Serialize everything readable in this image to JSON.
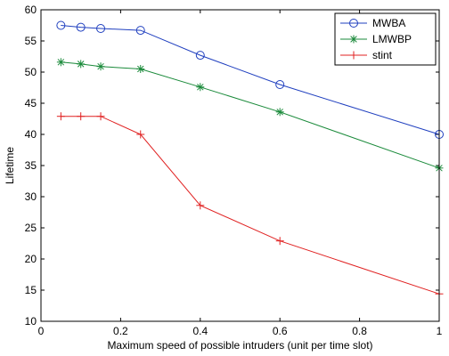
{
  "chart_data": {
    "type": "line",
    "xlabel": "Maximum speed of possible intruders (unit per time slot)",
    "ylabel": "Lifetime",
    "xlim": [
      0,
      1
    ],
    "ylim": [
      10,
      60
    ],
    "x_ticks": [
      0,
      0.2,
      0.4,
      0.6,
      0.8,
      1
    ],
    "x_tick_labels": [
      "0",
      "0.2",
      "0.4",
      "0.6",
      "0.8",
      "1"
    ],
    "y_ticks": [
      10,
      15,
      20,
      25,
      30,
      35,
      40,
      45,
      50,
      55,
      60
    ],
    "y_tick_labels": [
      "10",
      "15",
      "20",
      "25",
      "30",
      "35",
      "40",
      "45",
      "50",
      "55",
      "60"
    ],
    "grid": false,
    "legend_position": "top-right",
    "x": [
      0.05,
      0.1,
      0.15,
      0.25,
      0.4,
      0.6,
      1.0
    ],
    "series": [
      {
        "name": "MWBA",
        "color": "#1f3fbf",
        "marker": "circle",
        "values": [
          57.5,
          57.2,
          57.0,
          56.7,
          52.7,
          48.0,
          40.0
        ]
      },
      {
        "name": "LMWBP",
        "color": "#1a8a3a",
        "marker": "asterisk",
        "values": [
          51.6,
          51.3,
          50.9,
          50.5,
          47.6,
          43.6,
          34.6
        ]
      },
      {
        "name": "stint",
        "color": "#e02020",
        "marker": "plus",
        "values": [
          42.9,
          42.9,
          42.9,
          40.0,
          28.6,
          22.9,
          14.4
        ]
      }
    ]
  }
}
